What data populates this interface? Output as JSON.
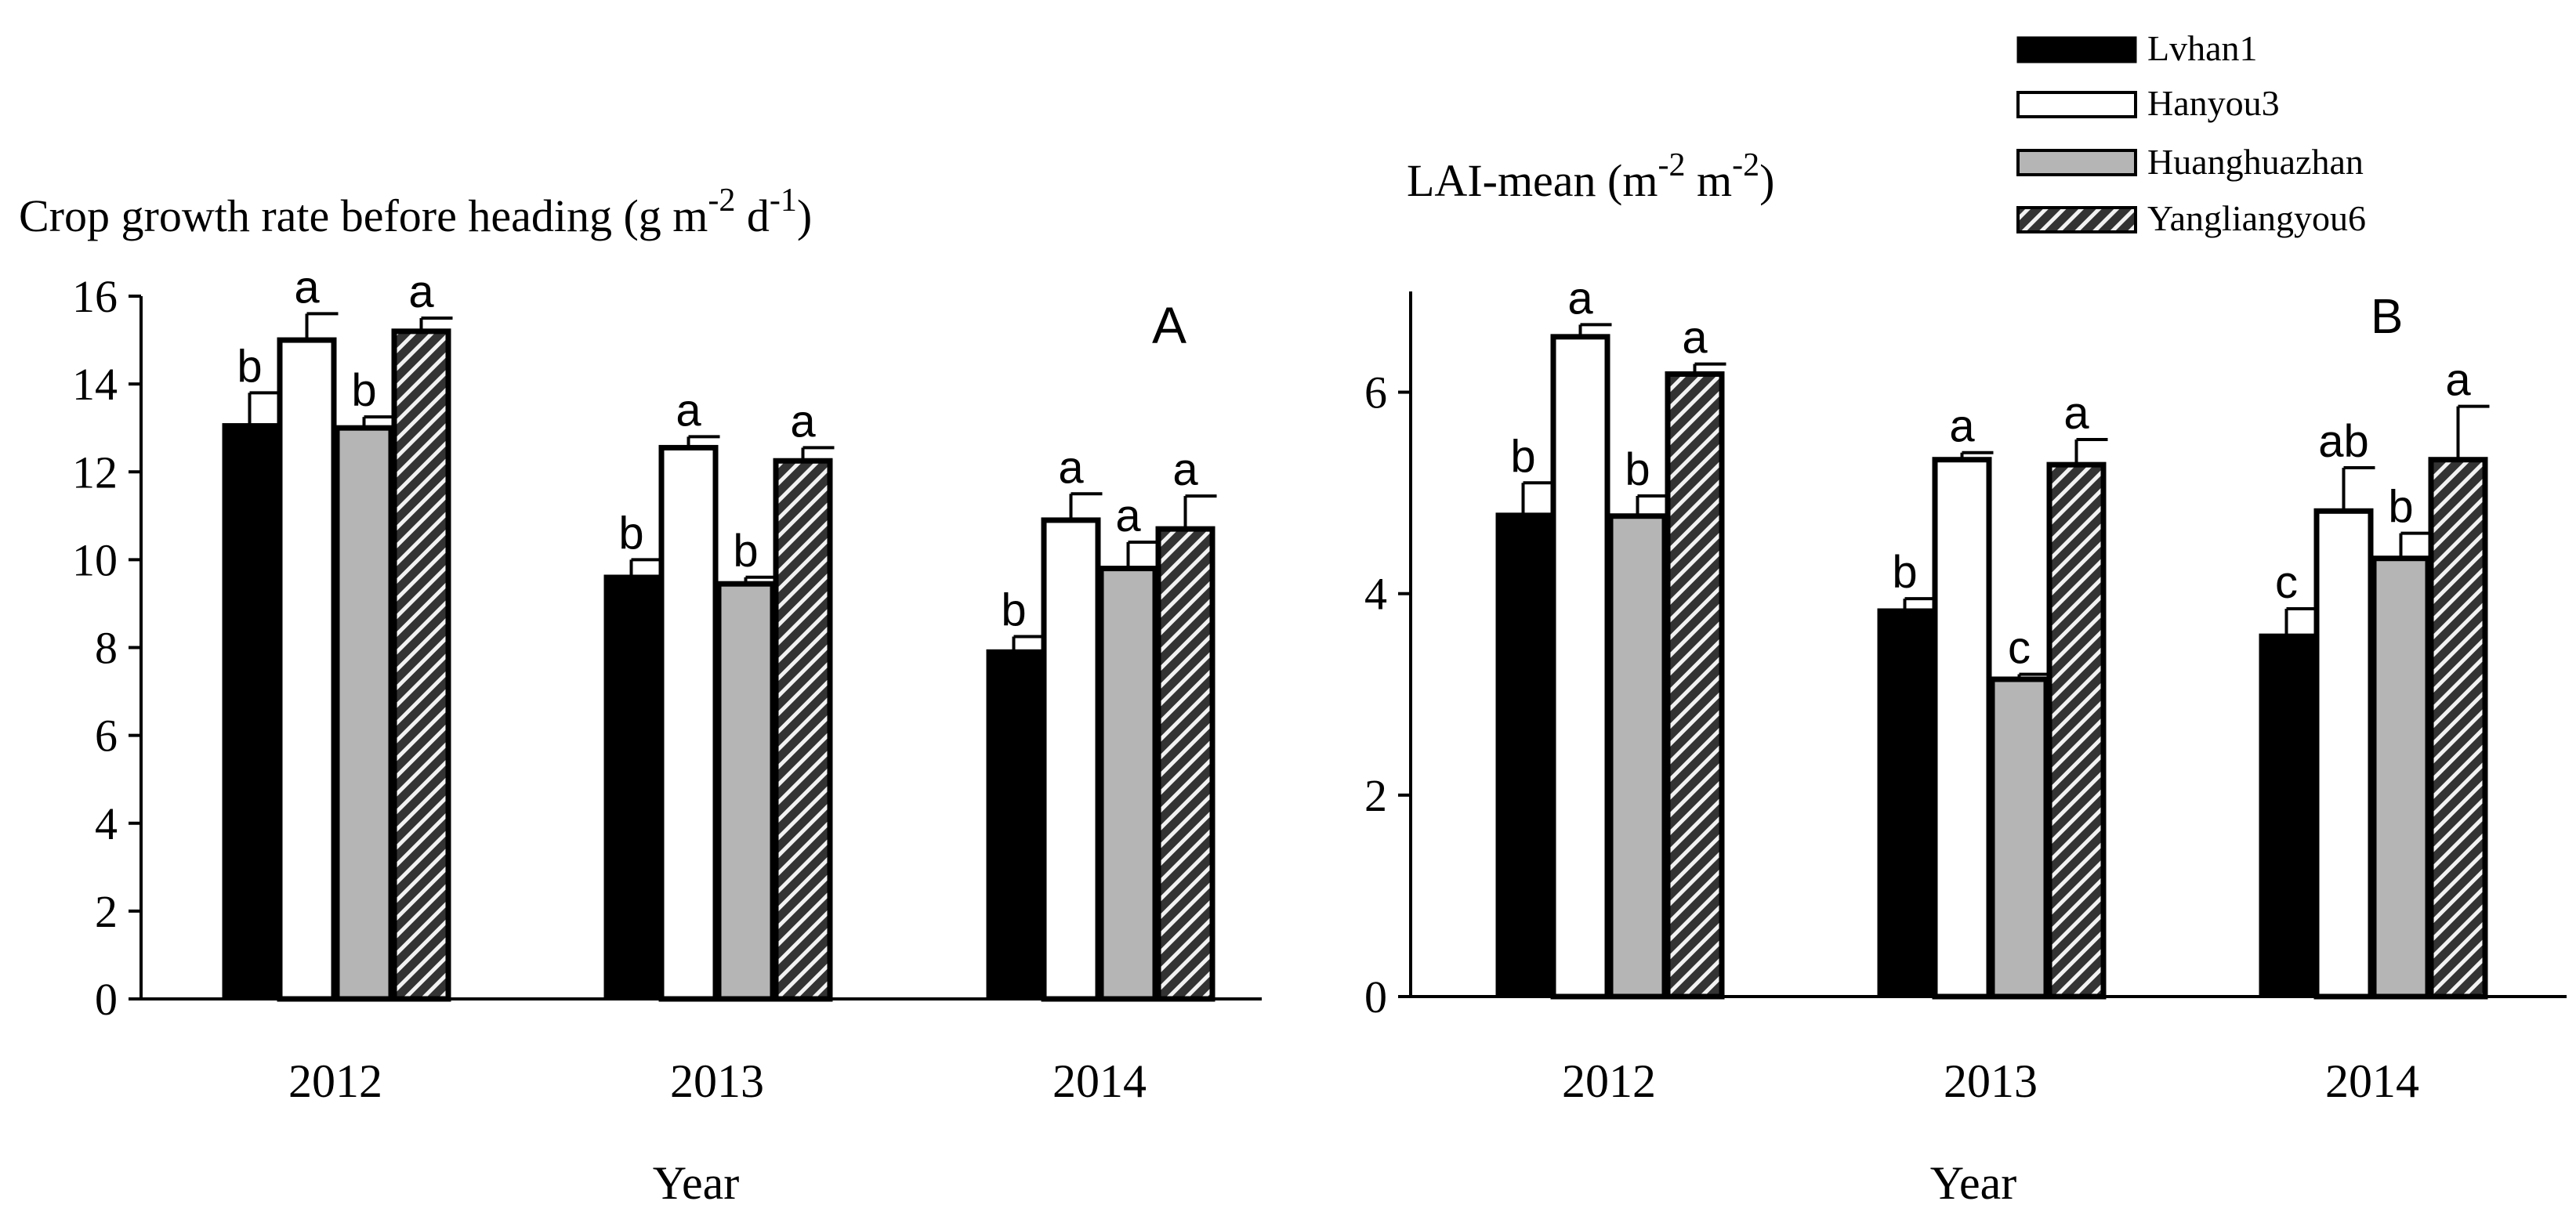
{
  "legend": [
    {
      "key": "lvhan1",
      "label": "Lvhan1",
      "fill": "#000000",
      "pattern": "solid"
    },
    {
      "key": "hanyou3",
      "label": "Hanyou3",
      "fill": "#ffffff",
      "pattern": "solid"
    },
    {
      "key": "huanghuazhan",
      "label": "Huanghuazhan",
      "fill": "#b5b5b5",
      "pattern": "solid"
    },
    {
      "key": "yangliangyou6",
      "label": "Yangliangyou6",
      "fill": "#333333",
      "pattern": "hatch"
    }
  ],
  "chart_data": [
    {
      "type": "bar",
      "panel": "A",
      "title": "Crop growth rate before heading (g m-2 d-1)",
      "title_parts": {
        "base": "Crop growth rate before heading (g m",
        "sup1": "-2",
        "mid": " d",
        "sup2": "-1",
        "end": ")"
      },
      "xlabel": "Year",
      "ylabel": "",
      "categories": [
        "2012",
        "2013",
        "2014"
      ],
      "ylim": [
        0,
        16
      ],
      "yticks": [
        "0",
        "2",
        "4",
        "6",
        "8",
        "10",
        "12",
        "14",
        "16"
      ],
      "series": [
        {
          "name": "Lvhan1",
          "values": [
            13.1,
            9.65,
            7.95
          ],
          "errors": [
            0.7,
            0.35,
            0.3
          ],
          "letters": [
            "b",
            "b",
            "b"
          ]
        },
        {
          "name": "Hanyou3",
          "values": [
            15.0,
            12.55,
            10.9
          ],
          "errors": [
            0.6,
            0.25,
            0.6
          ],
          "letters": [
            "a",
            "a",
            "a"
          ]
        },
        {
          "name": "Huanghuazhan",
          "values": [
            13.0,
            9.45,
            9.8
          ],
          "errors": [
            0.25,
            0.15,
            0.6
          ],
          "letters": [
            "b",
            "b",
            "a"
          ]
        },
        {
          "name": "Yangliangyou6",
          "values": [
            15.2,
            12.25,
            10.7
          ],
          "errors": [
            0.3,
            0.3,
            0.75
          ],
          "letters": [
            "a",
            "a",
            "a"
          ]
        }
      ]
    },
    {
      "type": "bar",
      "panel": "B",
      "title": "LAI-mean (m-2 m-2)",
      "title_parts": {
        "base": "LAI-mean (m",
        "sup1": "-2",
        "mid": " m",
        "sup2": "-2",
        "end": ")"
      },
      "xlabel": "Year",
      "ylabel": "",
      "categories": [
        "2012",
        "2013",
        "2014"
      ],
      "ylim": [
        0,
        7
      ],
      "yticks": [
        "0",
        "2",
        "4",
        "6"
      ],
      "series": [
        {
          "name": "Lvhan1",
          "values": [
            4.8,
            3.85,
            3.6
          ],
          "errors": [
            0.3,
            0.1,
            0.25
          ],
          "letters": [
            "b",
            "b",
            "c"
          ]
        },
        {
          "name": "Hanyou3",
          "values": [
            6.55,
            5.33,
            4.82
          ],
          "errors": [
            0.12,
            0.07,
            0.43
          ],
          "letters": [
            "a",
            "a",
            "ab"
          ]
        },
        {
          "name": "Huanghuazhan",
          "values": [
            4.77,
            3.15,
            4.35
          ],
          "errors": [
            0.2,
            0.05,
            0.25
          ],
          "letters": [
            "b",
            "c",
            "b"
          ]
        },
        {
          "name": "Yangliangyou6",
          "values": [
            6.18,
            5.28,
            5.33
          ],
          "errors": [
            0.1,
            0.25,
            0.53
          ],
          "letters": [
            "a",
            "a",
            "a"
          ]
        }
      ]
    }
  ]
}
